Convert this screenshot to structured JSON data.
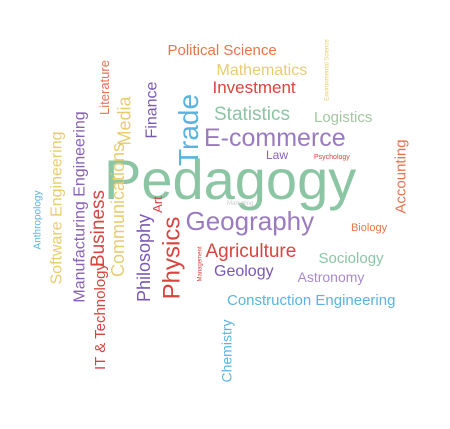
{
  "words": [
    {
      "text": "Pedagogy",
      "color": "#8cc5a3"
    },
    {
      "text": "Political Science",
      "color": "#e8744e"
    },
    {
      "text": "Mathematics",
      "color": "#e8cc72"
    },
    {
      "text": "Investment",
      "color": "#d9443e"
    },
    {
      "text": "Statistics",
      "color": "#8cc5a3"
    },
    {
      "text": "Logistics",
      "color": "#a2c7a0"
    },
    {
      "text": "E-commerce",
      "color": "#9b7bbf"
    },
    {
      "text": "Trade",
      "color": "#5bb4dd"
    },
    {
      "text": "Finance",
      "color": "#7a57b5"
    },
    {
      "text": "Literature",
      "color": "#e8744e"
    },
    {
      "text": "Media",
      "color": "#e8cc72"
    },
    {
      "text": "Communications",
      "color": "#e8cc72"
    },
    {
      "text": "Environmental Science",
      "color": "#e8cc72"
    },
    {
      "text": "Law",
      "color": "#8a62b8"
    },
    {
      "text": "Psychology",
      "color": "#d9443e"
    },
    {
      "text": "Accounting",
      "color": "#e8744e"
    },
    {
      "text": "Marketing",
      "color": "#cccccc"
    },
    {
      "text": "Geography",
      "color": "#9b7bbf"
    },
    {
      "text": "Biology",
      "color": "#e8744e"
    },
    {
      "text": "Art",
      "color": "#d9443e"
    },
    {
      "text": "Physics",
      "color": "#d9443e"
    },
    {
      "text": "Agriculture",
      "color": "#d9443e"
    },
    {
      "text": "Sociology",
      "color": "#8cc5a3"
    },
    {
      "text": "Management",
      "color": "#d9443e"
    },
    {
      "text": "Geology",
      "color": "#7a57b5"
    },
    {
      "text": "Astronomy",
      "color": "#a88acb"
    },
    {
      "text": "Construction Engineering",
      "color": "#5bb4dd"
    },
    {
      "text": "Chemistry",
      "color": "#5bb4dd"
    },
    {
      "text": "Philosophy",
      "color": "#7a57b5"
    },
    {
      "text": "Business",
      "color": "#d9443e"
    },
    {
      "text": "IT & Technology",
      "color": "#d9443e"
    },
    {
      "text": "Manufacturing Engineering",
      "color": "#8a62b8"
    },
    {
      "text": "Software Engineering",
      "color": "#e8cc72"
    },
    {
      "text": "Anthropology",
      "color": "#5bb4dd"
    }
  ]
}
